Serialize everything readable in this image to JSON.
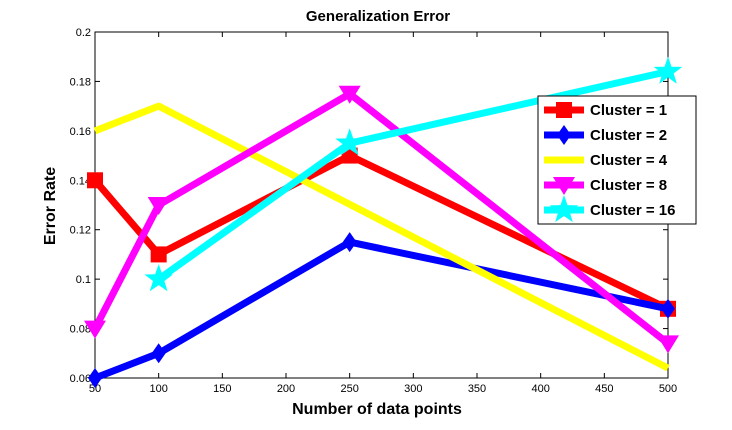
{
  "chart_data": {
    "type": "line",
    "title": "Generalization Error",
    "xlabel": "Number of data points",
    "ylabel": "Error Rate",
    "xlim": [
      50,
      500
    ],
    "ylim": [
      0.06,
      0.2
    ],
    "xticks": [
      50,
      100,
      150,
      200,
      250,
      300,
      350,
      400,
      450,
      500
    ],
    "xtick_labels": [
      "50",
      "100",
      "150",
      "200",
      "250",
      "300",
      "350",
      "400",
      "450",
      "500"
    ],
    "yticks": [
      0.06,
      0.08,
      0.1,
      0.12,
      0.14,
      0.16,
      0.18,
      0.2
    ],
    "ytick_labels": [
      "0.06",
      "0.08",
      "0.1",
      "0.12",
      "0.14",
      "0.16",
      "0.18",
      "0.2"
    ],
    "grid": false,
    "legend_position": "top-right",
    "series": [
      {
        "name": "Cluster = 1",
        "color": "#ff0000",
        "marker": "square",
        "x": [
          50,
          100,
          250,
          500
        ],
        "y": [
          0.14,
          0.11,
          0.15,
          0.088
        ]
      },
      {
        "name": "Cluster = 2",
        "color": "#0000ff",
        "marker": "diamond",
        "x": [
          50,
          100,
          250,
          500
        ],
        "y": [
          0.06,
          0.07,
          0.115,
          0.088
        ]
      },
      {
        "name": "Cluster = 4",
        "color": "#ffff00",
        "marker": "none",
        "x": [
          50,
          100,
          500
        ],
        "y": [
          0.16,
          0.17,
          0.064
        ]
      },
      {
        "name": "Cluster = 8",
        "color": "#ff00ff",
        "marker": "triangle-down",
        "x": [
          50,
          100,
          250,
          500
        ],
        "y": [
          0.08,
          0.13,
          0.175,
          0.074
        ]
      },
      {
        "name": "Cluster = 16",
        "color": "#00ffff",
        "marker": "star",
        "x": [
          100,
          250,
          500
        ],
        "y": [
          0.1,
          0.155,
          0.184
        ]
      }
    ]
  }
}
